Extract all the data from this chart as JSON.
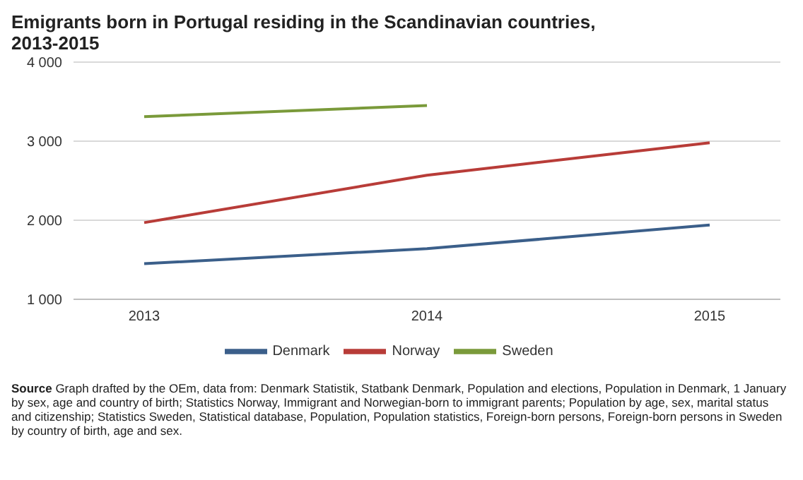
{
  "chart_data": {
    "type": "line",
    "title": "Emigrants born in Portugal residing in the Scandinavian countries, 2013-2015",
    "categories": [
      "2013",
      "2014",
      "2015"
    ],
    "series": [
      {
        "name": "Denmark",
        "color": "#3b5f8a",
        "values": [
          1450,
          1640,
          1940
        ]
      },
      {
        "name": "Norway",
        "color": "#b83c38",
        "values": [
          1970,
          2570,
          2980
        ]
      },
      {
        "name": "Sweden",
        "color": "#7a9a3a",
        "values": [
          3310,
          3450,
          null
        ]
      }
    ],
    "ylim": [
      1000,
      4000
    ],
    "yticks": [
      {
        "value": 1000,
        "label": "1 000"
      },
      {
        "value": 2000,
        "label": "2 000"
      },
      {
        "value": 3000,
        "label": "3 000"
      },
      {
        "value": 4000,
        "label": "4 000"
      }
    ],
    "grid": "y",
    "legend": "bottom",
    "marker": "none",
    "line_style": "solid",
    "annotations": [
      "Source Graph drafted by the OEm, data from: Denmark Statistik, Statbank Denmark, Population and elections, Population in Denmark, 1 January by sex, age and country of birth; Statistics Norway, Immigrant and Norwegian-born to immigrant parents; Population by age, sex, marital status and citizenship; Statistics Sweden, Statistical database, Population, Population statistics, Foreign-born persons, Foreign-born persons in Sweden by country of birth, age and sex."
    ]
  }
}
